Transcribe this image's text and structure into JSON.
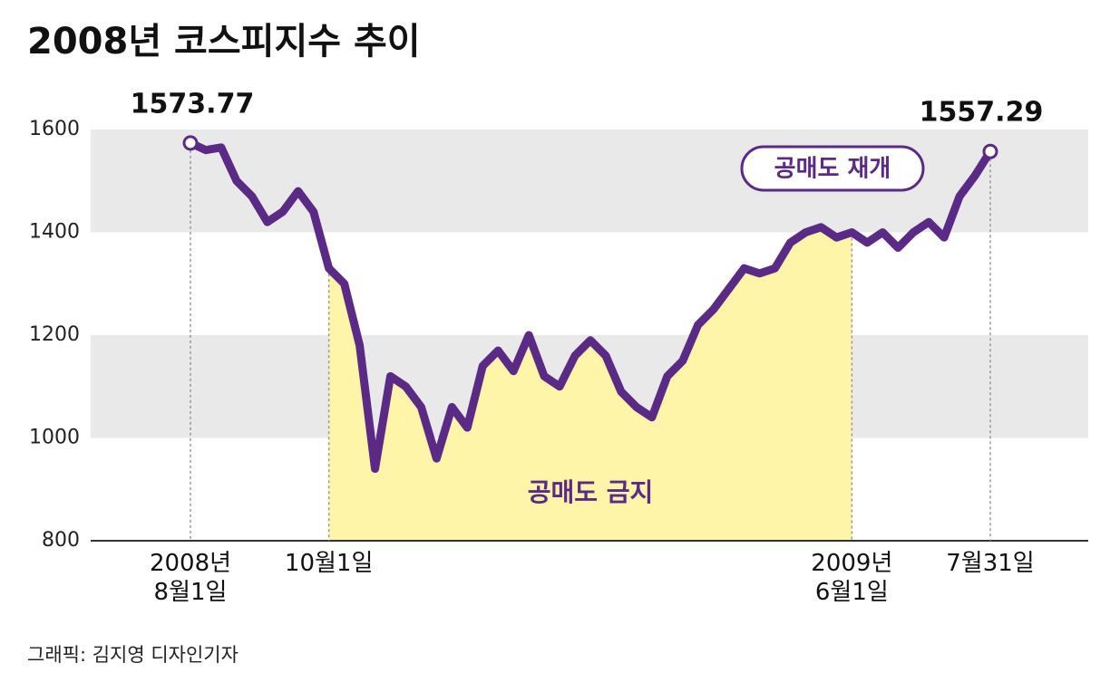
{
  "chart_data": {
    "type": "line",
    "title": "2008년 코스피지수 추이",
    "source": "그래픽: 김지영 디자인기자",
    "color": "#5b2a86",
    "categories": [
      "2008년\n8월1일",
      null,
      null,
      null,
      null,
      null,
      null,
      null,
      null,
      "10월1일",
      null,
      null,
      null,
      null,
      null,
      null,
      null,
      null,
      null,
      null,
      null,
      null,
      null,
      null,
      null,
      null,
      null,
      null,
      null,
      null,
      null,
      null,
      null,
      null,
      null,
      null,
      null,
      null,
      null,
      null,
      null,
      null,
      null,
      "2009년\n6월1일",
      null,
      null,
      null,
      null,
      null,
      null,
      null,
      null,
      "7월31일"
    ],
    "values": [
      1573.77,
      1560,
      1565,
      1500,
      1470,
      1420,
      1440,
      1480,
      1440,
      1330,
      1300,
      1180,
      940,
      1120,
      1100,
      1060,
      960,
      1060,
      1020,
      1140,
      1170,
      1130,
      1200,
      1120,
      1100,
      1160,
      1190,
      1160,
      1090,
      1060,
      1040,
      1120,
      1150,
      1220,
      1250,
      1290,
      1330,
      1320,
      1330,
      1380,
      1400,
      1410,
      1390,
      1400,
      1380,
      1400,
      1370,
      1400,
      1420,
      1390,
      1470,
      1510,
      1557.29
    ],
    "ylim": [
      800,
      1600
    ],
    "yticks": [
      800,
      1000,
      1200,
      1400,
      1600
    ],
    "highlight": {
      "label": "공매도 금지",
      "end_label": "공매도 재개",
      "range": [
        9,
        43
      ],
      "color": "#fff5a8"
    },
    "band_color": "#e9e9e9"
  }
}
